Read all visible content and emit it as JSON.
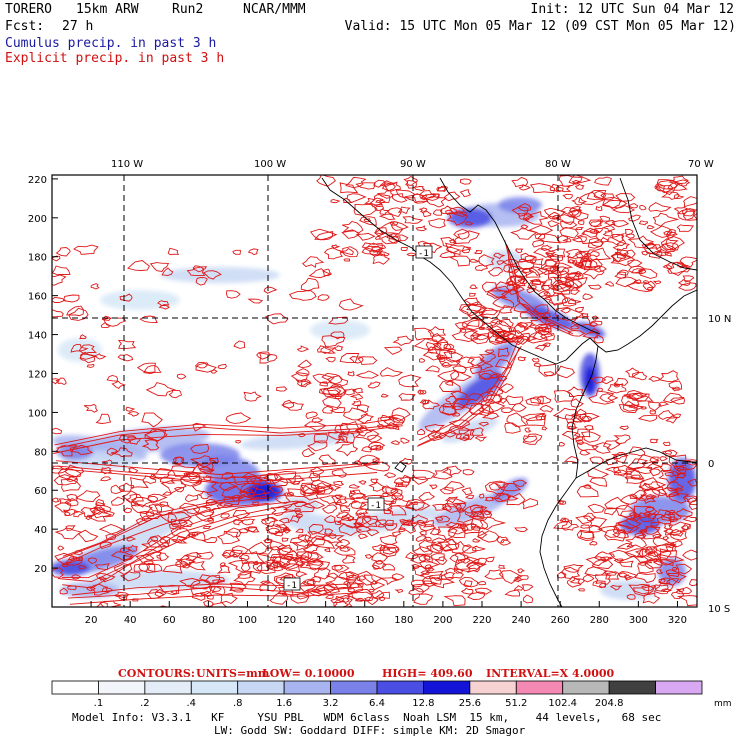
{
  "header": {
    "model": "TORERO",
    "resolution": "15km ARW",
    "run": "Run2",
    "org": "NCAR/MMM",
    "init": "Init: 12 UTC Sun 04 Mar 12",
    "fcst_label": "Fcst:",
    "fcst_value": "27 h",
    "valid": "Valid: 15 UTC Mon 05 Mar 12 (09 CST Mon 05 Mar 12)"
  },
  "fields": {
    "cumulus": "Cumulus precip. in past 3 h",
    "explicit": "Explicit precip. in past 3 h"
  },
  "top_lon_labels": [
    "110 W",
    "100 W",
    "90 W",
    "80 W",
    "70 W"
  ],
  "right_lat_labels": [
    "10 N",
    "0",
    "10 S"
  ],
  "y_ticks": [
    "20",
    "40",
    "60",
    "80",
    "100",
    "120",
    "140",
    "160",
    "180",
    "200",
    "220"
  ],
  "x_ticks": [
    "20",
    "40",
    "60",
    "80",
    "100",
    "120",
    "140",
    "160",
    "180",
    "200",
    "220",
    "240",
    "260",
    "280",
    "300",
    "320"
  ],
  "grid_labels": [
    "-1",
    "-1",
    "-1"
  ],
  "contours": {
    "label": "CONTOURS:",
    "units": "UNITS=mm",
    "low": "LOW= 0.10000",
    "high": "HIGH= 409.60",
    "interval": "INTERVAL=X 4.0000"
  },
  "colorbar": {
    "labels": [
      ".1",
      ".2",
      ".4",
      ".8",
      "1.6",
      "3.2",
      "6.4",
      "12.8",
      "25.6",
      "51.2",
      "102.4",
      "204.8"
    ],
    "unit": "mm",
    "colors": [
      "#ffffff",
      "#f2f6fb",
      "#e4ecf8",
      "#d6e8f7",
      "#c8d8f4",
      "#a8b4f0",
      "#7a82ea",
      "#4a4ee2",
      "#1414d8",
      "#f6d2d2",
      "#f48ab4",
      "#b8b8b8",
      "#404040",
      "#d8a8f2"
    ]
  },
  "footer": {
    "line1": "Model Info: V3.3.1   KF     YSU PBL   WDM 6class  Noah LSM  15 km,    44 levels,   68 sec",
    "line2": "LW: Godd SW: Goddard DIFF: simple KM: 2D Smagor"
  }
}
